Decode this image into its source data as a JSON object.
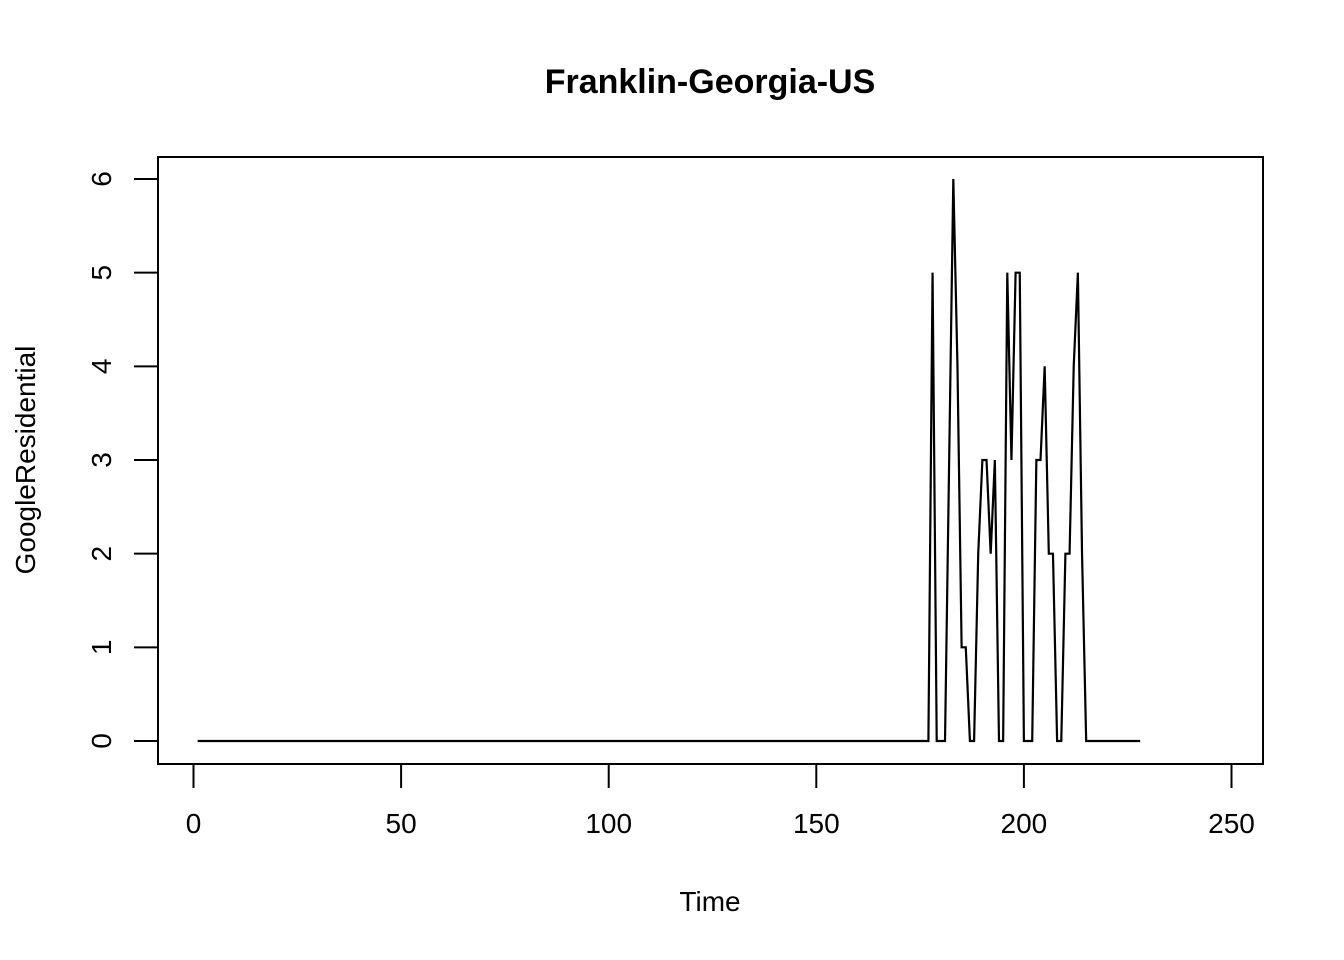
{
  "chart_data": {
    "type": "line",
    "title": "Franklin-Georgia-US",
    "xlabel": "Time",
    "ylabel": "GoogleResidential",
    "xlim": [
      0,
      250
    ],
    "ylim": [
      0,
      6
    ],
    "x_ticks": [
      0,
      50,
      100,
      150,
      200,
      250
    ],
    "y_ticks": [
      0,
      1,
      2,
      3,
      4,
      5,
      6
    ],
    "x_tick_labels": [
      "0",
      "50",
      "100",
      "150",
      "200",
      "250"
    ],
    "y_tick_labels": [
      "0",
      "1",
      "2",
      "3",
      "4",
      "5",
      "6"
    ],
    "grid": false,
    "legend": "none",
    "series": [
      {
        "color": "#000000",
        "x_start": 1,
        "values": [
          0,
          0,
          0,
          0,
          0,
          0,
          0,
          0,
          0,
          0,
          0,
          0,
          0,
          0,
          0,
          0,
          0,
          0,
          0,
          0,
          0,
          0,
          0,
          0,
          0,
          0,
          0,
          0,
          0,
          0,
          0,
          0,
          0,
          0,
          0,
          0,
          0,
          0,
          0,
          0,
          0,
          0,
          0,
          0,
          0,
          0,
          0,
          0,
          0,
          0,
          0,
          0,
          0,
          0,
          0,
          0,
          0,
          0,
          0,
          0,
          0,
          0,
          0,
          0,
          0,
          0,
          0,
          0,
          0,
          0,
          0,
          0,
          0,
          0,
          0,
          0,
          0,
          0,
          0,
          0,
          0,
          0,
          0,
          0,
          0,
          0,
          0,
          0,
          0,
          0,
          0,
          0,
          0,
          0,
          0,
          0,
          0,
          0,
          0,
          0,
          0,
          0,
          0,
          0,
          0,
          0,
          0,
          0,
          0,
          0,
          0,
          0,
          0,
          0,
          0,
          0,
          0,
          0,
          0,
          0,
          0,
          0,
          0,
          0,
          0,
          0,
          0,
          0,
          0,
          0,
          0,
          0,
          0,
          0,
          0,
          0,
          0,
          0,
          0,
          0,
          0,
          0,
          0,
          0,
          0,
          0,
          0,
          0,
          0,
          0,
          0,
          0,
          0,
          0,
          0,
          0,
          0,
          0,
          0,
          0,
          0,
          0,
          0,
          0,
          0,
          0,
          0,
          0,
          0,
          0,
          0,
          0,
          0,
          0,
          0,
          0,
          0,
          5,
          0,
          0,
          0,
          3,
          6,
          4,
          1,
          1,
          0,
          0,
          2,
          3,
          3,
          2,
          3,
          0,
          0,
          5,
          3,
          5,
          5,
          0,
          0,
          0,
          3,
          3,
          4,
          2,
          2,
          0,
          0,
          2,
          2,
          4,
          5,
          2,
          0,
          0,
          0,
          0,
          0,
          0,
          0,
          0,
          0,
          0,
          0,
          0,
          0,
          0
        ]
      }
    ]
  }
}
